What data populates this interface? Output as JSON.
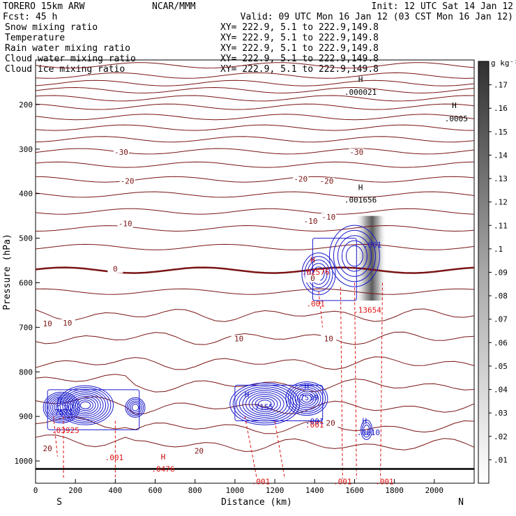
{
  "header": {
    "model": "TORERO  15km ARW",
    "forecast": "Fcst:    45 h",
    "center": "NCAR/MMM",
    "init": "Init: 12 UTC Sat 14 Jan 12",
    "valid": "Valid: 09 UTC Mon 16 Jan 12 (03 CST Mon 16 Jan 12)"
  },
  "legend": [
    {
      "name": "Snow mixing ratio",
      "xy": "XY= 222.9,  5.1 to 222.9,149.8",
      "color": "#000000"
    },
    {
      "name": "Temperature",
      "xy": "XY= 222.9,  5.1 to 222.9,149.8",
      "color": "#c00000"
    },
    {
      "name": "Rain water mixing ratio",
      "xy": "XY= 222.9,  5.1 to 222.9,149.8",
      "color": "#c00000"
    },
    {
      "name": "Cloud water mixing ratio",
      "xy": "XY= 222.9,  5.1 to 222.9,149.8",
      "color": "#1a1acc"
    },
    {
      "name": "Cloud ice mixing ratio",
      "xy": "XY= 222.9,  5.1 to 222.9,149.8",
      "color": "#000000"
    }
  ],
  "chart_data": {
    "type": "contour",
    "xlabel": "Distance (km)",
    "ylabel": "Pressure (hPa)",
    "xlim": [
      0,
      2200
    ],
    "ylim": [
      1050,
      100
    ],
    "x_ticks": [
      0,
      200,
      400,
      600,
      800,
      1000,
      1200,
      1400,
      1600,
      1800,
      2000
    ],
    "y_ticks": [
      200,
      300,
      400,
      500,
      600,
      700,
      800,
      900,
      1000
    ],
    "x_end_labels": {
      "left": "S",
      "right": "N"
    },
    "colorbar": {
      "unit": "g kg⁻¹",
      "ticks": [
        ".01",
        ".02",
        ".03",
        ".04",
        ".05",
        ".06",
        ".07",
        ".08",
        ".09",
        ".1",
        ".11",
        ".12",
        ".13",
        ".14",
        ".15",
        ".16",
        ".17"
      ]
    },
    "isotherm_labels": [
      {
        "x": 430,
        "p": 310,
        "text": "-30"
      },
      {
        "x": 1610,
        "p": 310,
        "text": "-30"
      },
      {
        "x": 460,
        "p": 375,
        "text": "-20"
      },
      {
        "x": 1330,
        "p": 370,
        "text": "-20"
      },
      {
        "x": 1460,
        "p": 375,
        "text": "-20"
      },
      {
        "x": 450,
        "p": 470,
        "text": "-10"
      },
      {
        "x": 1380,
        "p": 465,
        "text": "-10"
      },
      {
        "x": 1470,
        "p": 455,
        "text": "-10"
      },
      {
        "x": 400,
        "p": 572,
        "text": "0"
      },
      {
        "x": 1390,
        "p": 593,
        "text": "0"
      },
      {
        "x": 60,
        "p": 695,
        "text": "10"
      },
      {
        "x": 160,
        "p": 693,
        "text": "10"
      },
      {
        "x": 1020,
        "p": 728,
        "text": "10"
      },
      {
        "x": 1470,
        "p": 728,
        "text": "10"
      },
      {
        "x": 60,
        "p": 975,
        "text": "20"
      },
      {
        "x": 820,
        "p": 980,
        "text": "20"
      },
      {
        "x": 1480,
        "p": 918,
        "text": "20"
      }
    ],
    "field_labels": [
      {
        "x": 1630,
        "p": 178,
        "text": ".000021",
        "series": "snow"
      },
      {
        "x": 2110,
        "p": 238,
        "text": ".0005",
        "series": "snow"
      },
      {
        "x": 1630,
        "p": 420,
        "text": ".001656",
        "series": "snow"
      },
      {
        "x": 1690,
        "p": 521,
        "text": ".001",
        "series": "cloud"
      },
      {
        "x": 1405,
        "p": 582,
        "text": ".02576",
        "series": "rain"
      },
      {
        "x": 1405,
        "p": 653,
        "text": ".001",
        "series": "rain"
      },
      {
        "x": 1665,
        "p": 667,
        "text": ".13654",
        "series": "rain"
      },
      {
        "x": 130,
        "p": 897,
        "text": ".7571",
        "series": "cloud"
      },
      {
        "x": 150,
        "p": 937,
        "text": ".03925",
        "series": "rain"
      },
      {
        "x": 395,
        "p": 998,
        "text": ".001",
        "series": "rain"
      },
      {
        "x": 640,
        "p": 1024,
        "text": ".0476",
        "series": "rain"
      },
      {
        "x": 1135,
        "p": 885,
        "text": ".7155",
        "series": "cloud"
      },
      {
        "x": 1360,
        "p": 864,
        "text": ".7539",
        "series": "cloud"
      },
      {
        "x": 1400,
        "p": 917,
        "text": ".001",
        "series": "cloud"
      },
      {
        "x": 1400,
        "p": 925,
        "text": ".001",
        "series": "rain"
      },
      {
        "x": 1670,
        "p": 942,
        "text": ".0610",
        "series": "cloud"
      },
      {
        "x": 1130,
        "p": 1052,
        "text": ".001",
        "series": "rain"
      },
      {
        "x": 1540,
        "p": 1052,
        "text": ".001",
        "series": "rain"
      },
      {
        "x": 1750,
        "p": 1052,
        "text": ".001",
        "series": "rain"
      }
    ],
    "max_markers": [
      {
        "x": 1630,
        "p": 149,
        "text": "H",
        "color": "#000000"
      },
      {
        "x": 2100,
        "p": 208,
        "text": "H",
        "color": "#000000"
      },
      {
        "x": 1630,
        "p": 392,
        "text": "H",
        "color": "#000000"
      },
      {
        "x": 1390,
        "p": 555,
        "text": "H",
        "color": "#c00000"
      },
      {
        "x": 120,
        "p": 869,
        "text": "H",
        "color": "#1a1acc"
      },
      {
        "x": 640,
        "p": 997,
        "text": "H",
        "color": "#c00000"
      },
      {
        "x": 1060,
        "p": 857,
        "text": "H",
        "color": "#1a1acc"
      },
      {
        "x": 1360,
        "p": 838,
        "text": "H",
        "color": "#1a1acc"
      },
      {
        "x": 1650,
        "p": 916,
        "text": "H",
        "color": "#1a1acc"
      }
    ]
  }
}
